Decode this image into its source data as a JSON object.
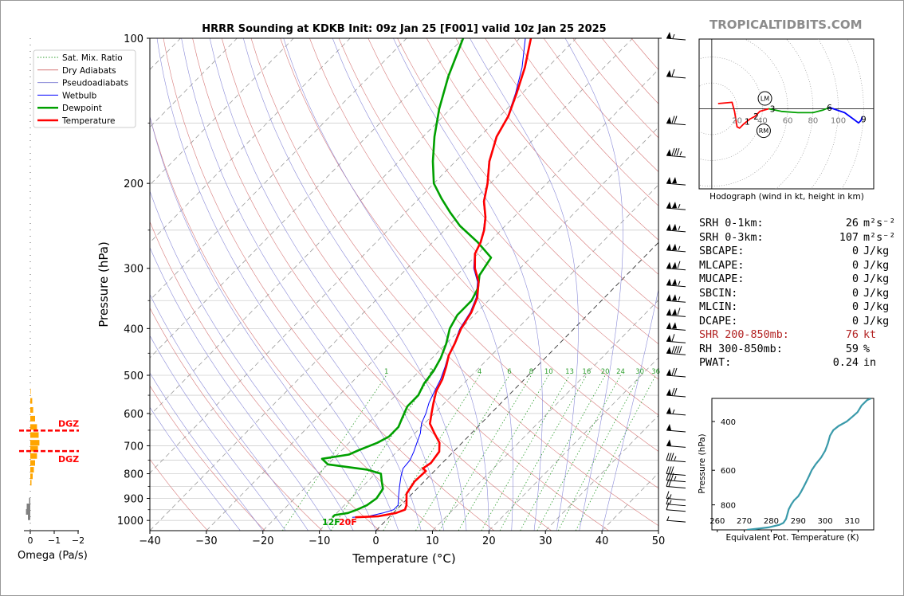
{
  "page": {
    "brand": "TROPICALTIDBITS.COM"
  },
  "skewt": {
    "title": "HRRR Sounding at KDKB Init: 09z Jan 25 [F001] valid 10z Jan 25 2025",
    "xlabel": "Temperature (°C)",
    "ylabel": "Pressure (hPa)",
    "xticks": [
      "−40",
      "−30",
      "−20",
      "−10",
      "0",
      "10",
      "20",
      "30",
      "40",
      "50"
    ],
    "yticks": [
      "100",
      "200",
      "300",
      "400",
      "500",
      "600",
      "700",
      "800",
      "900",
      "1000"
    ],
    "legend": [
      "Sat. Mix. Ratio",
      "Dry Adiabats",
      "Pseudoadiabats",
      "Wetbulb",
      "Dewpoint",
      "Temperature"
    ],
    "mixing_ratio_labels": [
      "1",
      "2",
      "4",
      "6",
      "8",
      "10",
      "13",
      "16",
      "20",
      "24",
      "30",
      "36"
    ],
    "surface_dewpoint_label": "12F",
    "surface_temp_label": "20F"
  },
  "colors": {
    "temperature": "#ff0000",
    "dewpoint": "#00a000",
    "wetbulb": "#0000ff",
    "dry_adiabat": "#d77a7a",
    "pseudoadiabat": "#8a8ad8",
    "mixing_ratio": "#2e9e2e",
    "theta_e": "#3a9aaa",
    "dgz": "#ff0000",
    "omega_negative": "#ffa500",
    "omega_positive": "#808080"
  },
  "chart_data": [
    {
      "type": "line",
      "name": "skew-t",
      "xlim": [
        -40,
        50
      ],
      "ylim": [
        1050,
        100
      ],
      "series": [
        {
          "name": "Temperature",
          "points": [
            [
              -6,
              985
            ],
            [
              -2,
              980
            ],
            [
              0.5,
              965
            ],
            [
              1.5,
              950
            ],
            [
              1,
              930
            ],
            [
              -1,
              880
            ],
            [
              -1.7,
              830
            ],
            [
              -1.5,
              790
            ],
            [
              -2.5,
              780
            ],
            [
              -2,
              760
            ],
            [
              -2.5,
              720
            ],
            [
              -4,
              690
            ],
            [
              -6.5,
              660
            ],
            [
              -9,
              630
            ],
            [
              -10.5,
              600
            ],
            [
              -12,
              570
            ],
            [
              -13.5,
              540
            ],
            [
              -14.5,
              510
            ],
            [
              -16,
              480
            ],
            [
              -17.5,
              455
            ],
            [
              -18.5,
              430
            ],
            [
              -20,
              400
            ],
            [
              -21,
              370
            ],
            [
              -22.5,
              345
            ],
            [
              -25,
              320
            ],
            [
              -28,
              300
            ],
            [
              -30.5,
              280
            ],
            [
              -31.5,
              265
            ],
            [
              -33,
              250
            ],
            [
              -35,
              235
            ],
            [
              -38,
              218
            ],
            [
              -40.5,
              200
            ],
            [
              -44,
              180
            ],
            [
              -47,
              160
            ],
            [
              -48.5,
              145
            ],
            [
              -51,
              130
            ],
            [
              -54,
              115
            ],
            [
              -58,
              100
            ]
          ]
        },
        {
          "name": "Dewpoint",
          "points": [
            [
              -10,
              985
            ],
            [
              -10,
              975
            ],
            [
              -8,
              965
            ],
            [
              -7,
              950
            ],
            [
              -6,
              930
            ],
            [
              -5.5,
              900
            ],
            [
              -6,
              860
            ],
            [
              -7.5,
              830
            ],
            [
              -9,
              800
            ],
            [
              -12,
              785
            ],
            [
              -20,
              765
            ],
            [
              -22,
              745
            ],
            [
              -18,
              730
            ],
            [
              -17,
              715
            ],
            [
              -15,
              690
            ],
            [
              -14,
              670
            ],
            [
              -14,
              640
            ],
            [
              -15,
              610
            ],
            [
              -16,
              580
            ],
            [
              -16,
              550
            ],
            [
              -17,
              520
            ],
            [
              -17.5,
              490
            ],
            [
              -18.5,
              460
            ],
            [
              -20,
              430
            ],
            [
              -22,
              400
            ],
            [
              -23,
              375
            ],
            [
              -23,
              350
            ],
            [
              -24,
              330
            ],
            [
              -26,
              310
            ],
            [
              -27,
              285
            ],
            [
              -32,
              265
            ],
            [
              -38,
              245
            ],
            [
              -42,
              230
            ],
            [
              -46,
              215
            ],
            [
              -50,
              200
            ],
            [
              -54,
              180
            ],
            [
              -58,
              160
            ],
            [
              -62,
              140
            ],
            [
              -66,
              120
            ],
            [
              -70,
              100
            ]
          ]
        },
        {
          "name": "Wetbulb",
          "points": [
            [
              -6.5,
              985
            ],
            [
              -3.8,
              980
            ],
            [
              -1.8,
              965
            ],
            [
              -0.5,
              950
            ],
            [
              -0.5,
              930
            ],
            [
              -2,
              890
            ],
            [
              -3.5,
              850
            ],
            [
              -5,
              810
            ],
            [
              -6,
              780
            ],
            [
              -6.2,
              750
            ],
            [
              -7,
              720
            ],
            [
              -8,
              690
            ],
            [
              -9,
              660
            ],
            [
              -10.5,
              630
            ],
            [
              -11.5,
              600
            ],
            [
              -12.8,
              570
            ],
            [
              -13.8,
              540
            ],
            [
              -14.8,
              510
            ],
            [
              -16.2,
              480
            ],
            [
              -17.6,
              455
            ],
            [
              -18.6,
              430
            ],
            [
              -20.2,
              400
            ],
            [
              -21.2,
              370
            ],
            [
              -22.7,
              345
            ],
            [
              -25.2,
              320
            ],
            [
              -28.2,
              300
            ],
            [
              -30.6,
              280
            ],
            [
              -31.6,
              265
            ],
            [
              -33.1,
              250
            ],
            [
              -35.1,
              235
            ],
            [
              -38.1,
              218
            ],
            [
              -40.6,
              200
            ],
            [
              -44.1,
              180
            ],
            [
              -47.1,
              160
            ],
            [
              -48.6,
              145
            ],
            [
              -51.2,
              130
            ],
            [
              -54.5,
              115
            ],
            [
              -59,
              100
            ]
          ]
        }
      ]
    },
    {
      "type": "line",
      "name": "hodograph",
      "title": "Hodograph (wind in kt, height in km)",
      "ring_labels": [
        "20",
        "40",
        "60",
        "80",
        "100"
      ],
      "height_labels": [
        "1",
        "2",
        "3",
        "6",
        "9"
      ],
      "storm_motion_labels": [
        "LM",
        "RM"
      ],
      "segments": [
        {
          "color": "#ff0000",
          "points": [
            [
              5,
              4
            ],
            [
              16,
              5
            ],
            [
              18,
              -2
            ],
            [
              20,
              -14
            ],
            [
              22,
              -15
            ],
            [
              25,
              -12
            ],
            [
              30,
              -8
            ],
            [
              34,
              -6
            ],
            [
              38,
              -2
            ],
            [
              45,
              0
            ]
          ]
        },
        {
          "color": "#00a000",
          "points": [
            [
              45,
              0
            ],
            [
              55,
              -2
            ],
            [
              68,
              -3
            ],
            [
              80,
              -3
            ],
            [
              88,
              -1
            ],
            [
              93,
              1
            ]
          ]
        },
        {
          "color": "#0000ff",
          "points": [
            [
              93,
              1
            ],
            [
              105,
              -3
            ],
            [
              112,
              -8
            ],
            [
              116,
              -11
            ],
            [
              118,
              -9
            ],
            [
              119,
              -6
            ]
          ]
        }
      ],
      "marker_points": [
        {
          "label": "1",
          "u": 28,
          "v": -10
        },
        {
          "label": "2",
          "u": 35,
          "v": -6
        },
        {
          "label": "3",
          "u": 48,
          "v": 0
        },
        {
          "label": "6",
          "u": 93,
          "v": 1
        },
        {
          "label": "9",
          "u": 120,
          "v": -8
        }
      ],
      "storm_motion": [
        {
          "label": "LM",
          "u": 42,
          "v": 8
        },
        {
          "label": "RM",
          "u": 41,
          "v": -17
        }
      ],
      "xlim": [
        -10,
        128
      ],
      "ylim": [
        -62,
        54
      ]
    },
    {
      "type": "line",
      "name": "theta-e profile",
      "xlabel": "Equivalent Pot. Temperature (K)",
      "ylabel": "Pressure (hPa)",
      "xticks": [
        "260",
        "270",
        "280",
        "290",
        "300",
        "310"
      ],
      "yticks": [
        "400",
        "600",
        "800"
      ],
      "xlim": [
        258,
        318
      ],
      "ylim": [
        985,
        330
      ],
      "series": [
        {
          "name": "Theta-E",
          "points": [
            [
              271,
              985
            ],
            [
              275,
              975
            ],
            [
              279,
              965
            ],
            [
              281,
              955
            ],
            [
              283,
              945
            ],
            [
              284.5,
              930
            ],
            [
              285.5,
              900
            ],
            [
              286,
              865
            ],
            [
              286.5,
              830
            ],
            [
              287.5,
              795
            ],
            [
              288.5,
              770
            ],
            [
              290,
              745
            ],
            [
              291,
              720
            ],
            [
              292,
              690
            ],
            [
              293,
              660
            ],
            [
              294,
              630
            ],
            [
              295,
              600
            ],
            [
              296.5,
              570
            ],
            [
              298.5,
              540
            ],
            [
              300,
              510
            ],
            [
              301,
              480
            ],
            [
              301.8,
              450
            ],
            [
              303,
              430
            ],
            [
              305,
              415
            ],
            [
              308,
              400
            ],
            [
              310,
              385
            ],
            [
              312,
              370
            ],
            [
              313.5,
              350
            ],
            [
              315.5,
              335
            ],
            [
              317,
              330
            ]
          ]
        }
      ]
    },
    {
      "type": "bar",
      "name": "omega",
      "xlabel": "Omega (Pa/s)",
      "xticks": [
        "0",
        "−1",
        "−2"
      ],
      "xlim": [
        0.2,
        -2.6
      ],
      "dgz_label": "DGZ",
      "dgz_levels": [
        651,
        718
      ],
      "levels": [
        985,
        960,
        935,
        910,
        885,
        860,
        835,
        810,
        785,
        760,
        735,
        710,
        690,
        665,
        640,
        615,
        590,
        565,
        540,
        520
      ],
      "values": [
        0.1,
        0.18,
        0.15,
        0.05,
        0,
        0,
        -0.05,
        -0.1,
        -0.15,
        -0.2,
        -0.28,
        -0.32,
        -0.38,
        -0.35,
        -0.28,
        -0.2,
        -0.12,
        -0.08,
        -0.02,
        0
      ]
    }
  ],
  "hodograph": {
    "caption": "Hodograph (wind in kt, height in km)"
  },
  "stats": [
    {
      "label": "SRH 0-1km:",
      "value": "26",
      "unit": "m²s⁻²"
    },
    {
      "label": "SRH 0-3km:",
      "value": "107",
      "unit": "m²s⁻²"
    },
    {
      "label": "SBCAPE:",
      "value": "0",
      "unit": "J/kg"
    },
    {
      "label": "MLCAPE:",
      "value": "0",
      "unit": "J/kg"
    },
    {
      "label": "MUCAPE:",
      "value": "0",
      "unit": "J/kg"
    },
    {
      "label": "SBCIN:",
      "value": "0",
      "unit": "J/kg"
    },
    {
      "label": "MLCIN:",
      "value": "0",
      "unit": "J/kg"
    },
    {
      "label": "DCAPE:",
      "value": "0",
      "unit": "J/kg"
    },
    {
      "label": "SHR 200-850mb:",
      "value": "76",
      "unit": "kt",
      "highlight": true
    },
    {
      "label": "RH 300-850mb:",
      "value": "59",
      "unit": "%"
    },
    {
      "label": "PWAT:",
      "value": "0.24",
      "unit": "in"
    }
  ],
  "omega": {
    "label": "Omega (Pa/s)"
  },
  "wind_barbs": [
    {
      "p": 100,
      "kt": 55
    },
    {
      "p": 120,
      "kt": 60
    },
    {
      "p": 150,
      "kt": 70
    },
    {
      "p": 175,
      "kt": 85
    },
    {
      "p": 200,
      "kt": 100
    },
    {
      "p": 225,
      "kt": 105
    },
    {
      "p": 250,
      "kt": 105
    },
    {
      "p": 275,
      "kt": 105
    },
    {
      "p": 300,
      "kt": 110
    },
    {
      "p": 325,
      "kt": 105
    },
    {
      "p": 350,
      "kt": 105
    },
    {
      "p": 375,
      "kt": 110
    },
    {
      "p": 400,
      "kt": 100
    },
    {
      "p": 425,
      "kt": 60
    },
    {
      "p": 450,
      "kt": 90
    },
    {
      "p": 500,
      "kt": 70
    },
    {
      "p": 550,
      "kt": 70
    },
    {
      "p": 600,
      "kt": 55
    },
    {
      "p": 650,
      "kt": 50
    },
    {
      "p": 700,
      "kt": 50
    },
    {
      "p": 750,
      "kt": 35
    },
    {
      "p": 800,
      "kt": 30
    },
    {
      "p": 825,
      "kt": 35
    },
    {
      "p": 850,
      "kt": 20
    },
    {
      "p": 900,
      "kt": 15
    },
    {
      "p": 925,
      "kt": 15
    },
    {
      "p": 950,
      "kt": 10
    },
    {
      "p": 1000,
      "kt": 5
    }
  ]
}
